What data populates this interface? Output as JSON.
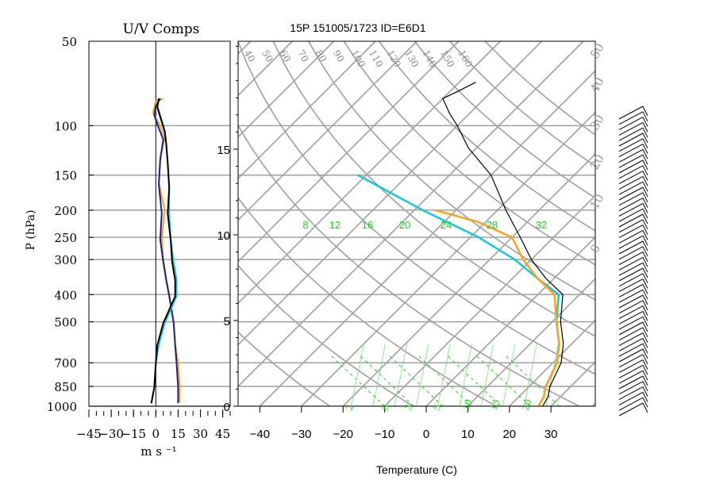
{
  "chart_data": [
    {
      "type": "line",
      "title": "U/V Comps",
      "xlabel": "m s ⁻¹",
      "ylabel": "P (hPa)",
      "xlim": [
        -45,
        50
      ],
      "ylim": [
        1000,
        50
      ],
      "y_scale": "log",
      "x_tick_labels": [
        "−45",
        "−30",
        "−15",
        "0",
        "15",
        "30",
        "45"
      ],
      "x_ticks": [
        -45,
        -30,
        -15,
        0,
        15,
        30,
        45
      ],
      "pressure_tick_labels": [
        "50",
        "100",
        "150",
        "200",
        "250",
        "300",
        "400",
        "500",
        "700",
        "850",
        "1000"
      ],
      "pressure_ticks": [
        50,
        100,
        150,
        200,
        250,
        300,
        400,
        500,
        700,
        850,
        1000
      ],
      "series": [
        {
          "color": "#f5a623",
          "x": [
            5,
            0,
            -2,
            3,
            6,
            3,
            2,
            6,
            4,
            5,
            7,
            9,
            12,
            13,
            15,
            16,
            16
          ],
          "p": [
            80,
            82,
            90,
            100,
            110,
            130,
            160,
            200,
            250,
            300,
            350,
            400,
            500,
            600,
            700,
            850,
            970
          ]
        },
        {
          "color": "#1a237e",
          "x": [
            3,
            0,
            -1,
            2,
            5,
            3,
            2,
            4,
            3,
            5,
            7,
            9,
            12,
            13,
            14,
            15,
            15
          ],
          "p": [
            80,
            85,
            92,
            102,
            112,
            132,
            162,
            205,
            255,
            305,
            355,
            405,
            505,
            605,
            705,
            855,
            975
          ]
        },
        {
          "color": "#20c5d8",
          "x": [
            2,
            1,
            3,
            6,
            7,
            8,
            9,
            9,
            10,
            12,
            14,
            14,
            6,
            2,
            0,
            -1,
            -3
          ],
          "p": [
            80,
            85,
            92,
            104,
            115,
            135,
            165,
            205,
            255,
            305,
            355,
            405,
            505,
            605,
            705,
            855,
            975
          ]
        },
        {
          "color": "#000000",
          "x": [
            2,
            1,
            3,
            6,
            7,
            8,
            9,
            8,
            10,
            11,
            13,
            13,
            5,
            1,
            0,
            -1,
            -3
          ],
          "p": [
            80,
            86,
            93,
            105,
            116,
            136,
            166,
            206,
            256,
            306,
            356,
            406,
            506,
            606,
            706,
            856,
            976
          ]
        }
      ]
    },
    {
      "type": "line",
      "title": "15P 151005/1723 ID=E6D1",
      "xlabel": "Temperature (C)",
      "xlim": [
        -42,
        42
      ],
      "x_tick_labels": [
        "−40",
        "−30",
        "−20",
        "−10",
        "0",
        "10",
        "20",
        "30"
      ],
      "x_ticks": [
        -40,
        -30,
        -20,
        -10,
        0,
        10,
        20,
        30
      ],
      "height_tick_labels": [
        "0",
        "5",
        "10",
        "15"
      ],
      "height_ticks_km": [
        0,
        5,
        10,
        15
      ],
      "isotherm_labels": [
        "40",
        "50",
        "60",
        "70",
        "80",
        "90",
        "100",
        "110",
        "120",
        "130",
        "140",
        "150",
        "160"
      ],
      "mixing_ratio_labels": [
        "8",
        "12",
        "16",
        "20",
        "24",
        "28",
        "32"
      ],
      "dry_adiabat_labels": [
        "2",
        "6",
        "3",
        "5",
        "10",
        "15",
        "20"
      ],
      "isobar_right_labels": [
        "50",
        "40",
        "30",
        "20",
        "10",
        "0"
      ],
      "series": [
        {
          "name": "temperature",
          "color": "#000000",
          "t": [
            28,
            27,
            25,
            22,
            18,
            12,
            6,
            -2,
            -10,
            -18,
            -28,
            -40,
            -52,
            -60,
            -65,
            -70,
            -68,
            -66
          ],
          "p": [
            1000,
            925,
            850,
            700,
            600,
            500,
            400,
            350,
            300,
            250,
            200,
            150,
            120,
            100,
            90,
            80,
            75,
            70
          ]
        },
        {
          "name": "dewpoint",
          "color": "#20c5d8",
          "t": [
            27,
            26,
            24,
            21,
            17,
            11,
            5,
            -4,
            -14,
            -28,
            -48,
            -72
          ],
          "p": [
            1000,
            925,
            850,
            700,
            600,
            500,
            400,
            350,
            300,
            250,
            200,
            150
          ]
        },
        {
          "name": "parcel",
          "color": "#f5a623",
          "t": [
            27,
            26,
            24,
            21,
            17,
            11,
            4,
            -4,
            -12,
            -20,
            -32,
            -45
          ],
          "p": [
            1000,
            925,
            850,
            700,
            600,
            500,
            400,
            350,
            300,
            250,
            220,
            200
          ]
        }
      ]
    }
  ]
}
